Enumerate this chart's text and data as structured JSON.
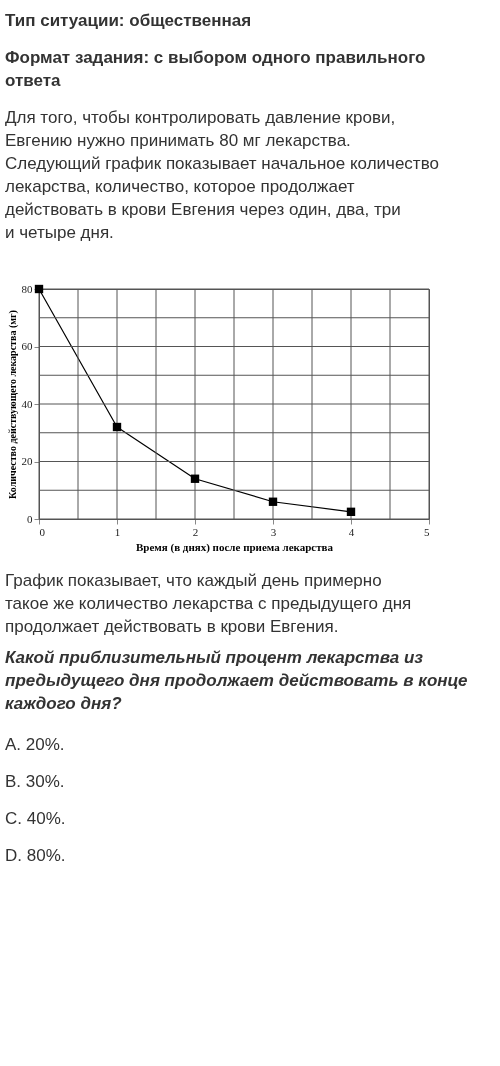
{
  "chart_data": {
    "type": "line",
    "title": "Тип ситуации: общественная",
    "subtitle": "Формат задания: с выбором одного правильного ответа",
    "annotations": [
      "Для того, чтобы контролировать давление крови, Евгению нужно принимать 80 мг лекарства. Следующий график показывает начальное количество лекарства, количество, которое продолжает действовать в крови Евгения через один, два, три и четыре дня.",
      "График показывает, что каждый день примерно такое же количество лекарства с предыдущего дня продолжает действовать в крови Евгения.",
      "Какой приблизительный процент лекарства из предыдущего дня продолжает действовать в конце каждого дня?",
      "A. 20%.",
      "B. 30%.",
      "C. 40%.",
      "D. 80%."
    ],
    "xlabel": "Время (в днях) после приема лекарства",
    "ylabel": "Количество действующего лекарства (мг)",
    "x": [
      0,
      1,
      2,
      3,
      4
    ],
    "series": [
      {
        "color": "#000000",
        "values": [
          80,
          32,
          14,
          6,
          2.5
        ]
      }
    ],
    "xlim": [
      0,
      5
    ],
    "ylim": [
      0,
      80
    ],
    "xticks": [
      0,
      {
        "value": 0.5,
        "label": null
      },
      1,
      {
        "value": 1.5,
        "label": null
      },
      2,
      {
        "value": 2.5,
        "label": null
      },
      3,
      {
        "value": 3.5,
        "label": null
      },
      4,
      {
        "value": 4.5,
        "label": null
      },
      5
    ],
    "yticks": [
      0,
      {
        "value": 10,
        "label": null
      },
      20,
      {
        "value": 30,
        "label": null
      },
      40,
      {
        "value": 50,
        "label": null
      },
      60,
      {
        "value": 70,
        "label": null
      },
      80
    ],
    "grid": true,
    "marker": "square",
    "line_style": "solid"
  }
}
